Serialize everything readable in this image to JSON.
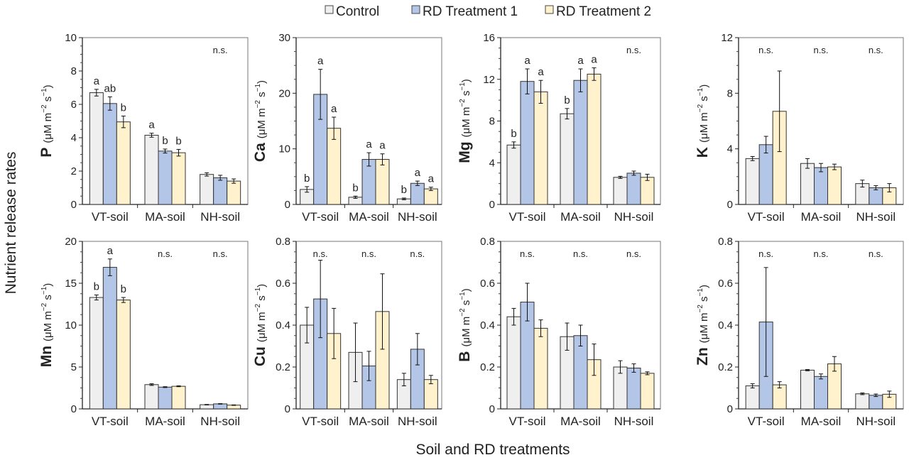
{
  "legend": [
    {
      "label": "Control",
      "color": "#efefef"
    },
    {
      "label": "RD Treatment 1",
      "color": "#b4c6e7"
    },
    {
      "label": "RD Treatment 2",
      "color": "#fff2cc"
    }
  ],
  "ylabel": "Nutrient release rates",
  "xlabel": "Soil and RD treatments",
  "unit": {
    "open": "(μM m",
    "exp1": "−2",
    "mid": " s",
    "exp2": "−1",
    "close": ")"
  },
  "chart_data": [
    {
      "type": "bar",
      "element": "P",
      "ylim": [
        0,
        10
      ],
      "ticks": [
        "0",
        "2",
        "4",
        "6",
        "8",
        "10"
      ],
      "categories": [
        "VT-soil",
        "MA-soil",
        "NH-soil"
      ],
      "series": [
        {
          "name": "Control",
          "values": [
            6.7,
            4.15,
            1.8
          ],
          "errors": [
            0.2,
            0.12,
            0.1
          ]
        },
        {
          "name": "RD Treatment 1",
          "values": [
            6.05,
            3.2,
            1.6
          ],
          "errors": [
            0.4,
            0.12,
            0.15
          ]
        },
        {
          "name": "RD Treatment 2",
          "values": [
            4.95,
            3.1,
            1.4
          ],
          "errors": [
            0.35,
            0.2,
            0.13
          ]
        }
      ],
      "letters": [
        [
          "a",
          "ab",
          "b"
        ],
        [
          "a",
          "b",
          "b"
        ],
        "n.s."
      ]
    },
    {
      "type": "bar",
      "element": "Ca",
      "ylim": [
        0,
        30
      ],
      "ticks": [
        "0",
        "10",
        "20",
        "30"
      ],
      "categories": [
        "VT-soil",
        "MA-soil",
        "NH-soil"
      ],
      "series": [
        {
          "name": "Control",
          "values": [
            2.7,
            1.3,
            1.0
          ],
          "errors": [
            0.5,
            0.2,
            0.15
          ]
        },
        {
          "name": "RD Treatment 1",
          "values": [
            19.8,
            8.1,
            3.8
          ],
          "errors": [
            4.5,
            1.2,
            0.4
          ]
        },
        {
          "name": "RD Treatment 2",
          "values": [
            13.7,
            8.1,
            2.8
          ],
          "errors": [
            2.0,
            1.0,
            0.3
          ]
        }
      ],
      "letters": [
        [
          "b",
          "a",
          "a"
        ],
        [
          "b",
          "a",
          "a"
        ],
        [
          "b",
          "a",
          "a"
        ]
      ]
    },
    {
      "type": "bar",
      "element": "Mg",
      "ylim": [
        0,
        16
      ],
      "ticks": [
        "0",
        "4",
        "8",
        "12",
        "16"
      ],
      "categories": [
        "VT-soil",
        "MA-soil",
        "NH-soil"
      ],
      "series": [
        {
          "name": "Control",
          "values": [
            5.7,
            8.7,
            2.6
          ],
          "errors": [
            0.3,
            0.5,
            0.1
          ]
        },
        {
          "name": "RD Treatment 1",
          "values": [
            11.8,
            11.9,
            3.0
          ],
          "errors": [
            1.2,
            1.1,
            0.2
          ]
        },
        {
          "name": "RD Treatment 2",
          "values": [
            10.8,
            12.5,
            2.6
          ],
          "errors": [
            1.1,
            0.6,
            0.3
          ]
        }
      ],
      "letters": [
        [
          "b",
          "a",
          "a"
        ],
        [
          "b",
          "a",
          "a"
        ],
        "n.s."
      ]
    },
    {
      "type": "bar",
      "element": "K",
      "ylim": [
        0,
        12
      ],
      "ticks": [
        "0",
        "4",
        "8",
        "12"
      ],
      "categories": [
        "VT-soil",
        "MA-soil",
        "NH-soil"
      ],
      "series": [
        {
          "name": "Control",
          "values": [
            3.3,
            2.95,
            1.5
          ],
          "errors": [
            0.15,
            0.35,
            0.25
          ]
        },
        {
          "name": "RD Treatment 1",
          "values": [
            4.3,
            2.65,
            1.2
          ],
          "errors": [
            0.6,
            0.3,
            0.15
          ]
        },
        {
          "name": "RD Treatment 2",
          "values": [
            6.7,
            2.7,
            1.2
          ],
          "errors": [
            2.9,
            0.2,
            0.3
          ]
        }
      ],
      "letters": [
        "n.s.",
        "n.s.",
        "n.s."
      ]
    },
    {
      "type": "bar",
      "element": "Mn",
      "ylim": [
        0,
        20
      ],
      "ticks": [
        "0",
        "5",
        "10",
        "15",
        "20"
      ],
      "categories": [
        "VT-soil",
        "MA-soil",
        "NH-soil"
      ],
      "series": [
        {
          "name": "Control",
          "values": [
            13.3,
            2.9,
            0.5
          ],
          "errors": [
            0.3,
            0.1,
            0.03
          ]
        },
        {
          "name": "RD Treatment 1",
          "values": [
            16.9,
            2.6,
            0.6
          ],
          "errors": [
            1.0,
            0.05,
            0.03
          ]
        },
        {
          "name": "RD Treatment 2",
          "values": [
            13.0,
            2.7,
            0.45
          ],
          "errors": [
            0.3,
            0.05,
            0.03
          ]
        }
      ],
      "letters": [
        [
          "b",
          "a",
          "b"
        ],
        "n.s.",
        "n.s."
      ]
    },
    {
      "type": "bar",
      "element": "Cu",
      "ylim": [
        0,
        0.8
      ],
      "ticks": [
        "0",
        "0.2",
        "0.4",
        "0.6",
        "0.8"
      ],
      "categories": [
        "VT-soil",
        "MA-soil",
        "NH-soil"
      ],
      "series": [
        {
          "name": "Control",
          "values": [
            0.4,
            0.27,
            0.14
          ],
          "errors": [
            0.085,
            0.14,
            0.03
          ]
        },
        {
          "name": "RD Treatment 1",
          "values": [
            0.525,
            0.205,
            0.285
          ],
          "errors": [
            0.185,
            0.07,
            0.075
          ]
        },
        {
          "name": "RD Treatment 2",
          "values": [
            0.36,
            0.465,
            0.14
          ],
          "errors": [
            0.12,
            0.18,
            0.02
          ]
        }
      ],
      "letters": [
        "n.s.",
        "n.s.",
        "n.s."
      ]
    },
    {
      "type": "bar",
      "element": "B",
      "ylim": [
        0,
        0.8
      ],
      "ticks": [
        "0",
        "0.2",
        "0.4",
        "0.6",
        "0.8"
      ],
      "categories": [
        "VT-soil",
        "MA-soil",
        "NH-soil"
      ],
      "series": [
        {
          "name": "Control",
          "values": [
            0.44,
            0.345,
            0.2
          ],
          "errors": [
            0.04,
            0.065,
            0.03
          ]
        },
        {
          "name": "RD Treatment 1",
          "values": [
            0.51,
            0.35,
            0.195
          ],
          "errors": [
            0.09,
            0.05,
            0.02
          ]
        },
        {
          "name": "RD Treatment 2",
          "values": [
            0.385,
            0.235,
            0.17
          ],
          "errors": [
            0.04,
            0.075,
            0.007
          ]
        }
      ],
      "letters": [
        "n.s.",
        "n.s.",
        "n.s."
      ]
    },
    {
      "type": "bar",
      "element": "Zn",
      "ylim": [
        0,
        0.8
      ],
      "ticks": [
        "0",
        "0.2",
        "0.4",
        "0.6",
        "0.8"
      ],
      "categories": [
        "VT-soil",
        "MA-soil",
        "NH-soil"
      ],
      "series": [
        {
          "name": "Control",
          "values": [
            0.11,
            0.185,
            0.072
          ],
          "errors": [
            0.01,
            0.003,
            0.004
          ]
        },
        {
          "name": "RD Treatment 1",
          "values": [
            0.415,
            0.155,
            0.065
          ],
          "errors": [
            0.26,
            0.012,
            0.006
          ]
        },
        {
          "name": "RD Treatment 2",
          "values": [
            0.115,
            0.215,
            0.07
          ],
          "errors": [
            0.015,
            0.035,
            0.015
          ]
        }
      ],
      "letters": [
        "n.s.",
        "n.s.",
        "n.s."
      ]
    }
  ]
}
